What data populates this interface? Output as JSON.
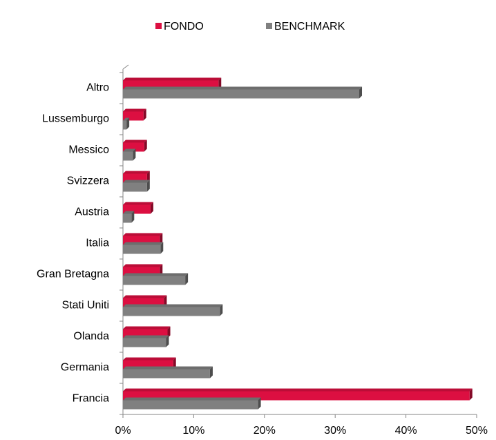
{
  "chart_data": {
    "type": "bar",
    "orientation": "horizontal",
    "categories": [
      "Altro",
      "Lussemburgo",
      "Messico",
      "Svizzera",
      "Austria",
      "Italia",
      "Gran Bretagna",
      "Stati Uniti",
      "Olanda",
      "Germania",
      "Francia"
    ],
    "series": [
      {
        "name": "FONDO",
        "color": "#dc0f41",
        "values": [
          13.5,
          2.9,
          3.0,
          3.4,
          3.9,
          5.2,
          5.2,
          5.8,
          6.3,
          7.1,
          49.0
        ]
      },
      {
        "name": "BENCHMARK",
        "color": "#808080",
        "values": [
          33.4,
          0.5,
          1.4,
          3.4,
          1.2,
          5.3,
          8.8,
          13.7,
          6.1,
          12.3,
          19.1
        ]
      }
    ],
    "xlim": [
      0,
      50
    ],
    "xticks": [
      {
        "value": 0,
        "label": "0%"
      },
      {
        "value": 10,
        "label": "10%"
      },
      {
        "value": 20,
        "label": "20%"
      },
      {
        "value": 30,
        "label": "30%"
      },
      {
        "value": 40,
        "label": "40%"
      },
      {
        "value": 50,
        "label": "50%"
      }
    ],
    "legend": "top"
  }
}
